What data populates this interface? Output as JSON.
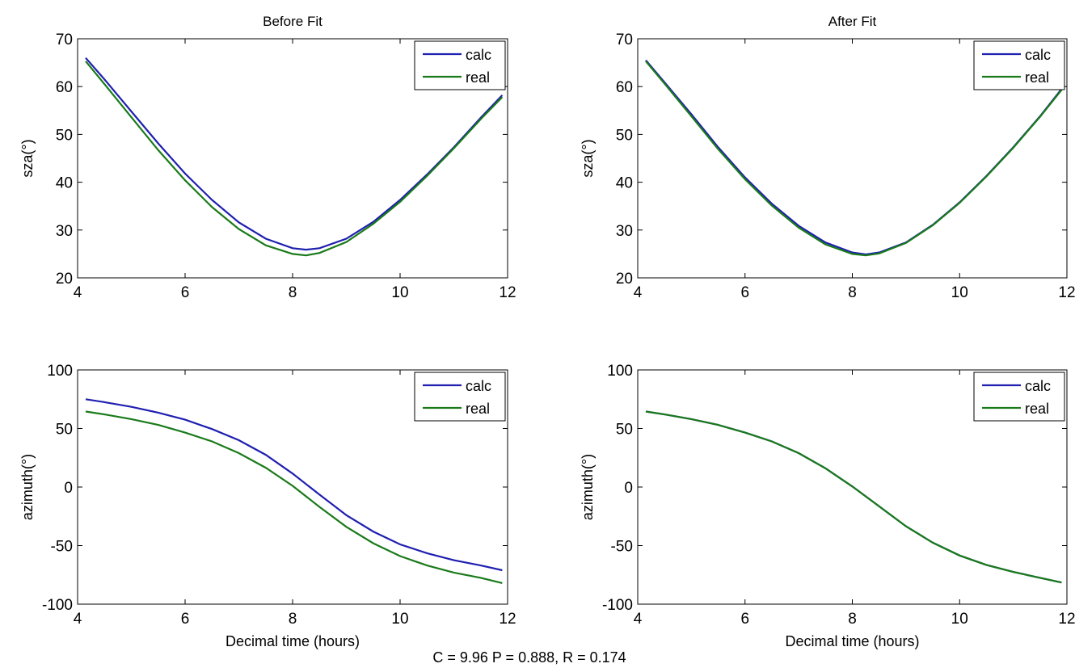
{
  "footer_text": "C = 9.96  P  = 0.888,  R = 0.174",
  "colors": {
    "calc": "#1f1fb0",
    "real": "#1a7a1a"
  },
  "chart_data": [
    {
      "type": "line",
      "title": "Before Fit",
      "xlabel": "",
      "ylabel": "sza(°)",
      "xlim": [
        4,
        12
      ],
      "ylim": [
        20,
        70
      ],
      "xticks": [
        4,
        6,
        8,
        10,
        12
      ],
      "yticks": [
        20,
        30,
        40,
        50,
        60,
        70
      ],
      "legend": "top-right",
      "series": [
        {
          "name": "calc",
          "x": [
            4.15,
            4.5,
            5,
            5.5,
            6,
            6.5,
            7,
            7.5,
            8,
            8.25,
            8.5,
            9,
            9.5,
            10,
            10.5,
            11,
            11.5,
            11.9
          ],
          "y": [
            66,
            61.5,
            54.8,
            48.1,
            41.8,
            36.3,
            31.6,
            28.2,
            26.2,
            25.9,
            26.2,
            28.2,
            31.7,
            36.3,
            41.6,
            47.3,
            53.5,
            58.2
          ]
        },
        {
          "name": "real",
          "x": [
            4.15,
            4.5,
            5,
            5.5,
            6,
            6.5,
            7,
            7.5,
            8,
            8.25,
            8.5,
            9,
            9.5,
            10,
            10.5,
            11,
            11.5,
            11.9
          ],
          "y": [
            65.3,
            60.5,
            53.6,
            46.7,
            40.4,
            34.8,
            30.2,
            26.8,
            25,
            24.7,
            25.2,
            27.5,
            31.3,
            35.9,
            41.3,
            47.1,
            53.2,
            57.8
          ]
        }
      ]
    },
    {
      "type": "line",
      "title": "After Fit",
      "xlabel": "",
      "ylabel": "sza(°)",
      "xlim": [
        4,
        12
      ],
      "ylim": [
        20,
        70
      ],
      "xticks": [
        4,
        6,
        8,
        10,
        12
      ],
      "yticks": [
        20,
        30,
        40,
        50,
        60,
        70
      ],
      "legend": "top-right",
      "series": [
        {
          "name": "calc",
          "x": [
            4.15,
            4.5,
            5,
            5.5,
            6,
            6.5,
            7,
            7.5,
            8,
            8.25,
            8.5,
            9,
            9.5,
            10,
            10.5,
            11,
            11.5,
            11.9
          ],
          "y": [
            65.5,
            60.9,
            54.2,
            47.3,
            41,
            35.5,
            30.9,
            27.4,
            25.3,
            24.9,
            25.3,
            27.4,
            31.1,
            35.8,
            41.3,
            47.3,
            53.8,
            59.5
          ]
        },
        {
          "name": "real",
          "x": [
            4.15,
            4.5,
            5,
            5.5,
            6,
            6.5,
            7,
            7.5,
            8,
            8.25,
            8.5,
            9,
            9.5,
            10,
            10.5,
            11,
            11.5,
            11.9
          ],
          "y": [
            65.3,
            60.6,
            53.8,
            46.9,
            40.6,
            35.1,
            30.5,
            27,
            25,
            24.7,
            25.1,
            27.3,
            31,
            35.7,
            41.2,
            47.2,
            53.7,
            59.3
          ]
        }
      ]
    },
    {
      "type": "line",
      "title": "",
      "xlabel": "Decimal time (hours)",
      "ylabel": "azimuth(°)",
      "xlim": [
        4,
        12
      ],
      "ylim": [
        -100,
        100
      ],
      "xticks": [
        4,
        6,
        8,
        10,
        12
      ],
      "yticks": [
        -100,
        -50,
        0,
        50,
        100
      ],
      "legend": "top-right",
      "series": [
        {
          "name": "calc",
          "x": [
            4.15,
            4.5,
            5,
            5.5,
            6,
            6.5,
            7,
            7.5,
            8,
            8.5,
            9,
            9.5,
            10,
            10.5,
            11,
            11.5,
            11.9
          ],
          "y": [
            75,
            72.5,
            68.5,
            63.5,
            57.5,
            49.5,
            40,
            27.5,
            11.5,
            -6.5,
            -24,
            -38,
            -49,
            -56.5,
            -62.5,
            -67,
            -71
          ]
        },
        {
          "name": "real",
          "x": [
            4.15,
            4.5,
            5,
            5.5,
            6,
            6.5,
            7,
            7.5,
            8,
            8.5,
            9,
            9.5,
            10,
            10.5,
            11,
            11.5,
            11.9
          ],
          "y": [
            64.5,
            62,
            58,
            53,
            46.5,
            39,
            29,
            16.5,
            1,
            -17,
            -34,
            -48,
            -59,
            -67,
            -73,
            -77.5,
            -82
          ]
        }
      ]
    },
    {
      "type": "line",
      "title": "",
      "xlabel": "Decimal time (hours)",
      "ylabel": "azimuth(°)",
      "xlim": [
        4,
        12
      ],
      "ylim": [
        -100,
        100
      ],
      "xticks": [
        4,
        6,
        8,
        10,
        12
      ],
      "yticks": [
        -100,
        -50,
        0,
        50,
        100
      ],
      "legend": "top-right",
      "series": [
        {
          "name": "calc",
          "x": [
            4.15,
            4.5,
            5,
            5.5,
            6,
            6.5,
            7,
            7.5,
            8,
            8.5,
            9,
            9.5,
            10,
            10.5,
            11,
            11.5,
            11.9
          ],
          "y": [
            64.5,
            62,
            58,
            53,
            46.5,
            39,
            29,
            16,
            0.5,
            -16.5,
            -33.5,
            -47.5,
            -58.5,
            -66.5,
            -72.5,
            -77.5,
            -81.5
          ]
        },
        {
          "name": "real",
          "x": [
            4.15,
            4.5,
            5,
            5.5,
            6,
            6.5,
            7,
            7.5,
            8,
            8.5,
            9,
            9.5,
            10,
            10.5,
            11,
            11.5,
            11.9
          ],
          "y": [
            64.5,
            62,
            58,
            53,
            46.5,
            39,
            29,
            16,
            0.5,
            -16.5,
            -33.5,
            -47.5,
            -58.5,
            -66.5,
            -72.5,
            -77.5,
            -81.5
          ]
        }
      ]
    }
  ]
}
